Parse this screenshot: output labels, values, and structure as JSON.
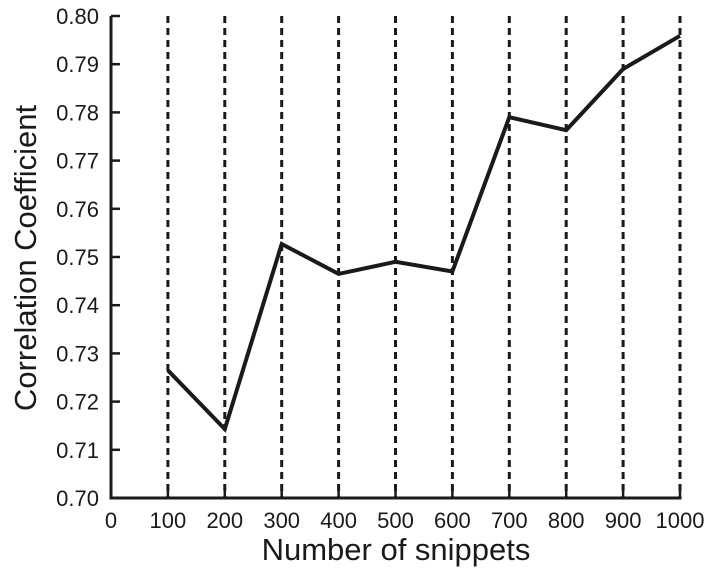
{
  "chart_data": {
    "type": "line",
    "title": "",
    "xlabel": "Number of snippets",
    "ylabel": "Correlation Coefficient",
    "xlim": [
      0,
      1000
    ],
    "ylim": [
      0.7,
      0.8
    ],
    "x_ticks": [
      "0",
      "100",
      "200",
      "300",
      "400",
      "500",
      "600",
      "700",
      "800",
      "900",
      "1000"
    ],
    "y_ticks": [
      "0.70",
      "0.71",
      "0.72",
      "0.73",
      "0.74",
      "0.75",
      "0.76",
      "0.77",
      "0.78",
      "0.79",
      "0.80"
    ],
    "vertical_reference_lines": [
      100,
      200,
      300,
      400,
      500,
      600,
      700,
      800,
      900,
      1000
    ],
    "grid": false,
    "line_color": "#1a1a1a",
    "series": [
      {
        "x": [
          100,
          200,
          300,
          400,
          500,
          600,
          700,
          800,
          900,
          1000
        ],
        "values": [
          0.7265,
          0.7143,
          0.7527,
          0.7465,
          0.749,
          0.747,
          0.779,
          0.7763,
          0.789,
          0.7959
        ]
      }
    ]
  }
}
